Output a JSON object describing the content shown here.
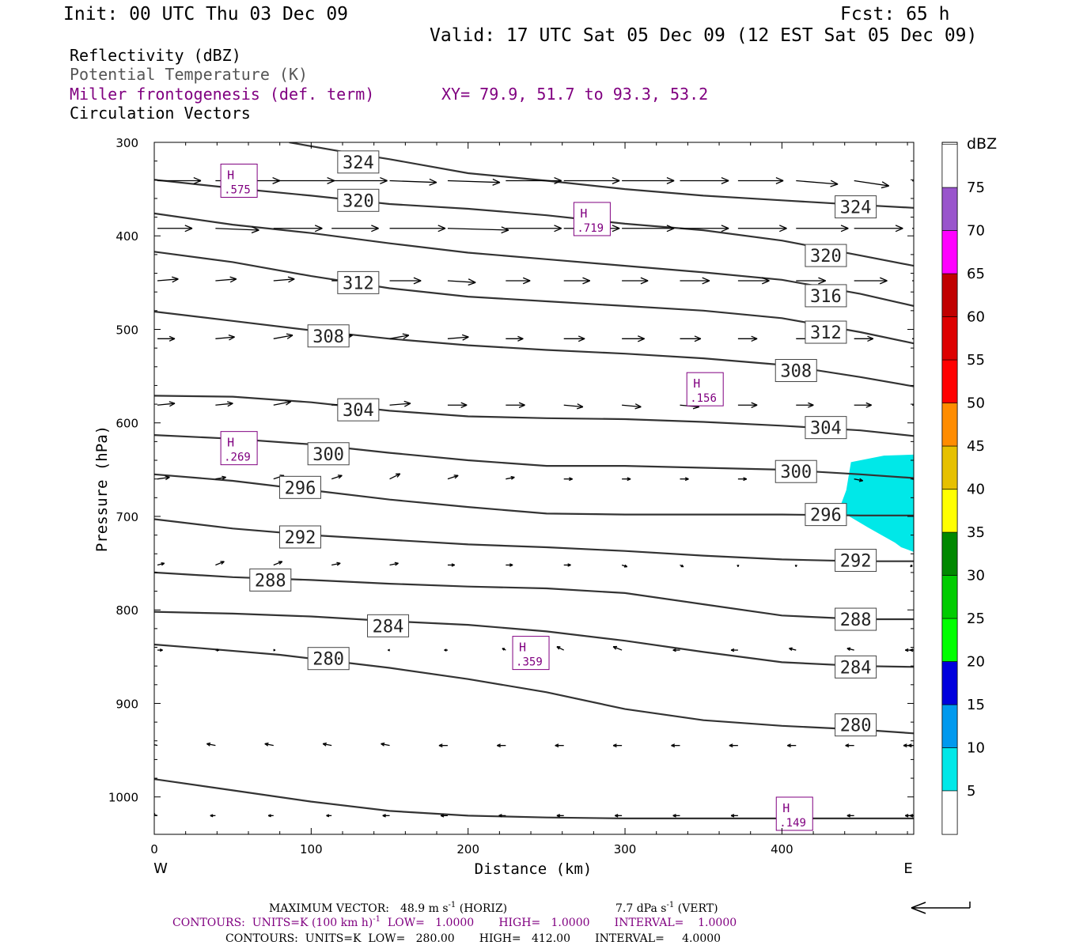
{
  "header": {
    "init": "Init: 00 UTC Thu 03 Dec 09",
    "fcst": "Fcst:   65 h",
    "valid": "Valid: 17 UTC Sat 05 Dec 09 (12 EST Sat 05 Dec 09)"
  },
  "fields": {
    "reflectivity": "Reflectivity (dBZ)",
    "theta": "Potential Temperature (K)",
    "miller": "Miller frontogenesis (def. term)",
    "xy": "XY=  79.9, 51.7 to  93.3, 53.2",
    "circ": "Circulation Vectors"
  },
  "colors": {
    "miller": "#800080",
    "theta": "#555555",
    "refl_5": "#00e8e8"
  },
  "chart_data": {
    "type": "cross-section",
    "xlabel": "Distance (km)",
    "ylabel": "Pressure (hPa)",
    "xlim": [
      0,
      484
    ],
    "ylim": [
      1040,
      300
    ],
    "y_scale": "linear, inverted",
    "x_ticks": [
      "0",
      "100",
      "200",
      "300",
      "400"
    ],
    "y_ticks": [
      "300",
      "400",
      "500",
      "600",
      "700",
      "800",
      "900",
      "1000"
    ],
    "x_end_labels": {
      "left": "W",
      "right": "E"
    },
    "theta_contours": [
      {
        "value": 280,
        "label": "280",
        "points": [
          [
            0,
            837
          ],
          [
            30,
            841
          ],
          [
            80,
            848
          ],
          [
            150,
            862
          ],
          [
            200,
            874
          ],
          [
            250,
            888
          ],
          [
            300,
            906
          ],
          [
            350,
            918
          ],
          [
            400,
            924
          ],
          [
            450,
            928
          ],
          [
            484,
            932
          ]
        ],
        "labels": [
          [
            111,
            852
          ],
          [
            447,
            923
          ]
        ]
      },
      {
        "value": 284,
        "label": "284",
        "points": [
          [
            0,
            802
          ],
          [
            50,
            804
          ],
          [
            100,
            807
          ],
          [
            150,
            812
          ],
          [
            200,
            816
          ],
          [
            250,
            823
          ],
          [
            300,
            833
          ],
          [
            350,
            845
          ],
          [
            400,
            856
          ],
          [
            450,
            860
          ],
          [
            484,
            861
          ]
        ],
        "labels": [
          [
            149,
            817
          ],
          [
            447,
            861
          ]
        ]
      },
      {
        "value": 288,
        "label": "288",
        "points": [
          [
            0,
            760
          ],
          [
            50,
            765
          ],
          [
            100,
            768
          ],
          [
            150,
            772
          ],
          [
            200,
            775
          ],
          [
            250,
            777
          ],
          [
            300,
            782
          ],
          [
            350,
            794
          ],
          [
            400,
            806
          ],
          [
            450,
            810
          ],
          [
            484,
            810
          ]
        ],
        "labels": [
          [
            74,
            768
          ],
          [
            447,
            810
          ]
        ]
      },
      {
        "value": 292,
        "label": "292",
        "points": [
          [
            0,
            703
          ],
          [
            50,
            713
          ],
          [
            100,
            720
          ],
          [
            150,
            725
          ],
          [
            200,
            730
          ],
          [
            250,
            733
          ],
          [
            300,
            737
          ],
          [
            350,
            742
          ],
          [
            400,
            746
          ],
          [
            450,
            748
          ],
          [
            484,
            748
          ]
        ],
        "labels": [
          [
            93,
            722
          ],
          [
            447,
            747
          ]
        ]
      },
      {
        "value": 296,
        "label": "296",
        "points": [
          [
            0,
            655
          ],
          [
            50,
            662
          ],
          [
            100,
            672
          ],
          [
            150,
            682
          ],
          [
            200,
            690
          ],
          [
            250,
            697
          ],
          [
            300,
            698
          ],
          [
            350,
            698
          ],
          [
            400,
            698
          ],
          [
            450,
            699
          ],
          [
            484,
            699
          ]
        ],
        "labels": [
          [
            93,
            669
          ],
          [
            428,
            698
          ]
        ]
      },
      {
        "value": 300,
        "label": "300",
        "points": [
          [
            0,
            613
          ],
          [
            50,
            617
          ],
          [
            100,
            623
          ],
          [
            150,
            632
          ],
          [
            200,
            640
          ],
          [
            250,
            646
          ],
          [
            300,
            646
          ],
          [
            350,
            648
          ],
          [
            400,
            650
          ],
          [
            450,
            655
          ],
          [
            484,
            659
          ]
        ],
        "labels": [
          [
            111,
            633
          ],
          [
            409,
            652
          ]
        ]
      },
      {
        "value": 304,
        "label": "304",
        "points": [
          [
            0,
            571
          ],
          [
            50,
            572
          ],
          [
            100,
            578
          ],
          [
            150,
            587
          ],
          [
            200,
            593
          ],
          [
            250,
            595
          ],
          [
            300,
            596
          ],
          [
            350,
            599
          ],
          [
            400,
            603
          ],
          [
            450,
            608
          ],
          [
            484,
            614
          ]
        ],
        "labels": [
          [
            130,
            586
          ],
          [
            428,
            605
          ]
        ]
      },
      {
        "value": 308,
        "label": "308",
        "points": [
          [
            0,
            481
          ],
          [
            50,
            491
          ],
          [
            100,
            501
          ],
          [
            150,
            510
          ],
          [
            200,
            517
          ],
          [
            250,
            522
          ],
          [
            300,
            526
          ],
          [
            350,
            531
          ],
          [
            400,
            538
          ],
          [
            450,
            551
          ],
          [
            484,
            561
          ]
        ],
        "labels": [
          [
            111,
            507
          ],
          [
            409,
            544
          ]
        ]
      },
      {
        "value": 312,
        "label": "312",
        "points": [
          [
            0,
            417
          ],
          [
            50,
            428
          ],
          [
            100,
            443
          ],
          [
            150,
            456
          ],
          [
            200,
            465
          ],
          [
            250,
            470
          ],
          [
            300,
            475
          ],
          [
            350,
            480
          ],
          [
            400,
            488
          ],
          [
            450,
            503
          ],
          [
            484,
            515
          ]
        ],
        "labels": [
          [
            130,
            450
          ],
          [
            428,
            503
          ]
        ]
      },
      {
        "value": 316,
        "label": "316",
        "points": [
          [
            0,
            376
          ],
          [
            50,
            388
          ],
          [
            100,
            397
          ],
          [
            150,
            408
          ],
          [
            200,
            418
          ],
          [
            250,
            425
          ],
          [
            300,
            432
          ],
          [
            350,
            439
          ],
          [
            400,
            447
          ],
          [
            450,
            462
          ],
          [
            484,
            475
          ]
        ],
        "labels": [
          [
            428,
            464
          ]
        ]
      },
      {
        "value": 320,
        "label": "320",
        "points": [
          [
            0,
            340
          ],
          [
            50,
            349
          ],
          [
            100,
            357
          ],
          [
            150,
            366
          ],
          [
            200,
            371
          ],
          [
            250,
            378
          ],
          [
            300,
            387
          ],
          [
            350,
            394
          ],
          [
            400,
            405
          ],
          [
            450,
            421
          ],
          [
            484,
            432
          ]
        ],
        "labels": [
          [
            130,
            362
          ],
          [
            428,
            421
          ]
        ]
      },
      {
        "value": 324,
        "label": "324",
        "points": [
          [
            86,
            300
          ],
          [
            120,
            310
          ],
          [
            150,
            318
          ],
          [
            200,
            333
          ],
          [
            250,
            341
          ],
          [
            300,
            350
          ],
          [
            350,
            357
          ],
          [
            400,
            362
          ],
          [
            450,
            367
          ],
          [
            484,
            370
          ]
        ],
        "labels": [
          [
            130,
            321
          ],
          [
            447,
            369
          ]
        ]
      },
      {
        "value": 276,
        "label": "",
        "points": [
          [
            0,
            981
          ],
          [
            50,
            993
          ],
          [
            100,
            1005
          ],
          [
            150,
            1015
          ],
          [
            200,
            1020
          ],
          [
            250,
            1022
          ],
          [
            300,
            1023
          ],
          [
            350,
            1023
          ],
          [
            400,
            1023
          ],
          [
            450,
            1023
          ],
          [
            484,
            1023
          ]
        ],
        "labels": []
      }
    ],
    "miller_maxima": [
      {
        "label": "H",
        "value": ".575",
        "x": 54,
        "p": 341
      },
      {
        "label": "H",
        "value": ".719",
        "x": 279,
        "p": 382
      },
      {
        "label": "H",
        "value": ".156",
        "x": 351,
        "p": 564
      },
      {
        "label": "H",
        "value": ".269",
        "x": 54,
        "p": 627
      },
      {
        "label": "H",
        "value": ".359",
        "x": 240,
        "p": 846
      },
      {
        "label": "H",
        "value": ".149",
        "x": 408,
        "p": 1018
      }
    ],
    "reflectivity": [
      {
        "dbz_min": 5,
        "polygon": [
          [
            444,
            642
          ],
          [
            465,
            635
          ],
          [
            484,
            634
          ],
          [
            484,
            738
          ],
          [
            476,
            733
          ],
          [
            472,
            728
          ],
          [
            455,
            712
          ],
          [
            441,
            698
          ],
          [
            437,
            690
          ],
          [
            441,
            672
          ]
        ]
      }
    ],
    "vectors": [
      {
        "p": 341,
        "u": [
          25,
          37,
          35,
          32,
          27,
          30,
          32,
          32,
          30,
          28,
          26,
          24,
          20,
          15,
          15
        ],
        "w": [
          0,
          0,
          0,
          0,
          -1,
          -1,
          0,
          0,
          0,
          0,
          0,
          -2,
          -3,
          -4,
          -3
        ]
      },
      {
        "p": 392,
        "u": [
          20,
          25,
          28,
          27,
          32,
          35,
          32,
          32,
          30,
          28,
          28,
          30,
          28,
          30,
          27
        ],
        "w": [
          0,
          -1,
          0,
          0,
          0,
          -1,
          0,
          0,
          0,
          0,
          0,
          0,
          0,
          0,
          0
        ]
      },
      {
        "p": 448,
        "u": [
          12,
          12,
          12,
          13,
          18,
          16,
          14,
          15,
          15,
          17,
          18,
          17,
          19,
          21,
          25
        ],
        "w": [
          1,
          1,
          1,
          0,
          0,
          -1,
          0,
          0,
          0,
          0,
          0,
          0,
          0,
          0,
          0
        ]
      },
      {
        "p": 510,
        "u": [
          10,
          11,
          11,
          12,
          11,
          12,
          10,
          12,
          13,
          12,
          11,
          11,
          11,
          9,
          8
        ],
        "w": [
          0,
          1,
          2,
          2,
          2,
          1,
          0,
          0,
          0,
          0,
          0,
          0,
          0,
          0,
          -1
        ]
      },
      {
        "p": 581,
        "u": [
          10,
          10,
          10,
          10,
          12,
          11,
          11,
          11,
          11,
          11,
          11,
          10,
          10,
          9,
          8
        ],
        "w": [
          1,
          1,
          2,
          1,
          1,
          0,
          0,
          -1,
          -1,
          -1,
          0,
          0,
          0,
          0,
          -1
        ]
      },
      {
        "p": 660,
        "u": [
          7,
          6,
          6,
          6,
          6,
          6,
          5,
          5,
          5,
          5,
          5,
          5,
          5,
          5,
          5
        ],
        "w": [
          1,
          1,
          2,
          2,
          3,
          2,
          1,
          0,
          0,
          0,
          0,
          -1,
          -1,
          -1,
          -1
        ]
      },
      {
        "p": 752,
        "u": [
          4,
          5,
          5,
          5,
          5,
          4,
          4,
          4,
          3,
          2,
          0,
          0,
          0,
          -1,
          -1
        ],
        "w": [
          1,
          2,
          2,
          1,
          1,
          0,
          0,
          0,
          -1,
          -1,
          -1,
          -1,
          -2,
          -1,
          -1
        ]
      },
      {
        "p": 843,
        "u": [
          3,
          2,
          1,
          1,
          -1,
          -2,
          -2,
          -4,
          -5,
          -4,
          -4,
          -4,
          -4,
          -4,
          -4
        ],
        "w": [
          0,
          0,
          0,
          0,
          0,
          0,
          1,
          2,
          2,
          0,
          0,
          1,
          1,
          0,
          0
        ]
      },
      {
        "p": 945,
        "u": [
          -4,
          -5,
          -5,
          -5,
          -5,
          -5,
          -5,
          -5,
          -5,
          -5,
          -5,
          -5,
          -5,
          -5,
          -5
        ],
        "w": [
          1,
          1,
          1,
          1,
          1,
          0,
          0,
          0,
          0,
          0,
          0,
          0,
          0,
          0,
          0
        ]
      },
      {
        "p": 1020,
        "u": [
          -3,
          -3,
          -3,
          -3,
          -4,
          -4,
          -4,
          -4,
          -4,
          -4,
          -4,
          -4,
          -4,
          -4,
          -4
        ],
        "w": [
          1,
          0,
          0,
          0,
          0,
          0,
          0,
          0,
          0,
          0,
          0,
          0,
          0,
          0,
          0
        ]
      }
    ],
    "vector_x": [
      0,
      37,
      74,
      111,
      148,
      185,
      222,
      259,
      296,
      333,
      370,
      407,
      444,
      481,
      484
    ]
  },
  "colorbar": {
    "title": "dBZ",
    "labels": [
      "5",
      "10",
      "15",
      "20",
      "25",
      "30",
      "35",
      "40",
      "45",
      "50",
      "55",
      "60",
      "65",
      "70",
      "75"
    ],
    "colors": [
      "#00e8e8",
      "#0099ee",
      "#0000dd",
      "#00ff00",
      "#00cc00",
      "#008800",
      "#ffff00",
      "#e6c000",
      "#ff8c00",
      "#ff0000",
      "#dd0000",
      "#c00000",
      "#ff00ff",
      "#9955cc",
      "#ffffff"
    ]
  },
  "footer": {
    "max_vector_lead": "MAXIMUM VECTOR:",
    "max_vector_h": "48.9 m s",
    "max_vector_h_sup": "-1",
    "max_vector_h_unit": " (HORIZ)",
    "max_vector_v": "7.7 dPa s",
    "max_vector_v_sup": "-1",
    "max_vector_v_unit": " (VERT)",
    "contours1_a": "CONTOURS:  UNITS=K (100 km h)",
    "contours1_sup": "-1",
    "contours1_b": "  LOW=   1.0000       HIGH=   1.0000       INTERVAL=    1.0000",
    "contours2": "CONTOURS:  UNITS=K  LOW=   280.00       HIGH=   412.00       INTERVAL=     4.0000"
  }
}
